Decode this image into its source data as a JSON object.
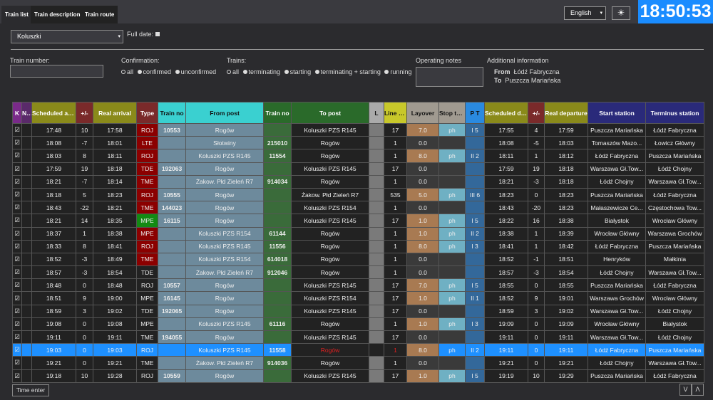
{
  "tabs": [
    "Train list",
    "Train description",
    "Train route"
  ],
  "language": "English",
  "clock": "18:50:53",
  "station": "Koluszki",
  "full_date_label": "Full date:",
  "train_number_label": "Train number:",
  "confirmation": {
    "label": "Confirmation:",
    "options": [
      "all",
      "confirmed",
      "unconfirmed"
    ]
  },
  "trains": {
    "label": "Trains:",
    "options": [
      "all",
      "terminating",
      "starting",
      "terminating + starting",
      "running"
    ]
  },
  "operating_notes_label": "Operating notes",
  "additional": {
    "label": "Additional information",
    "from_label": "From",
    "from": "Łódź Fabryczna",
    "to_label": "To",
    "to": "Puszcza Mariańska"
  },
  "headers": [
    "K",
    "N K",
    "Scheduled arrival",
    "+/-",
    "Real arrival",
    "Type",
    "Train no",
    "From post",
    "Train no",
    "To post",
    "L",
    "Line no.",
    "Layover",
    "Stop type",
    "P T",
    "Scheduled departure",
    "+/-",
    "Real departure",
    "Start station",
    "Terminus station"
  ],
  "rows": [
    [
      "☑",
      "",
      "17:48",
      "10",
      "17:58",
      "ROJ",
      "10553",
      "Rogów",
      "",
      "Koluszki PZS R145",
      "",
      "17",
      "7.0",
      "ph",
      "I 5",
      "17:55",
      "4",
      "17:59",
      "Puszcza Mariańska",
      "Łódź Fabryczna",
      "red"
    ],
    [
      "☑",
      "",
      "18:08",
      "-7",
      "18:01",
      "LTE",
      "",
      "Słotwiny",
      "215010",
      "Rogów",
      "",
      "1",
      "0.0",
      "",
      "",
      "18:08",
      "-5",
      "18:03",
      "Tomaszów Mazo...",
      "Łowicz Główny",
      "red"
    ],
    [
      "☑",
      "",
      "18:03",
      "8",
      "18:11",
      "ROJ",
      "",
      "Koluszki PZS R145",
      "11554",
      "Rogów",
      "",
      "1",
      "8.0",
      "ph",
      "II 2",
      "18:11",
      "1",
      "18:12",
      "Łódź Fabryczna",
      "Puszcza Mariańska",
      "red"
    ],
    [
      "☑",
      "",
      "17:59",
      "19",
      "18:18",
      "TDE",
      "192063",
      "Rogów",
      "",
      "Koluszki PZS R145",
      "",
      "17",
      "0.0",
      "",
      "",
      "17:59",
      "19",
      "18:18",
      "Warszawa Gł.Tow...",
      "Łódź Chojny",
      "red"
    ],
    [
      "☑",
      "",
      "18:21",
      "-7",
      "18:14",
      "TME",
      "",
      "Żakow. Płd Zieleń R7",
      "914034",
      "Rogów",
      "",
      "1",
      "0.0",
      "",
      "",
      "18:21",
      "-3",
      "18:18",
      "Łódź Chojny",
      "Warszawa Gł.Tow...",
      "red"
    ],
    [
      "☑",
      "",
      "18:18",
      "5",
      "18:23",
      "ROJ",
      "10555",
      "Rogów",
      "",
      "Żakow. Płd Zieleń R7",
      "",
      "535",
      "5.0",
      "ph",
      "III 6",
      "18:23",
      "0",
      "18:23",
      "Puszcza Mariańska",
      "Łódź Fabryczna",
      "red"
    ],
    [
      "☑",
      "",
      "18:43",
      "-22",
      "18:21",
      "TME",
      "144023",
      "Rogów",
      "",
      "Koluszki PZS R154",
      "",
      "1",
      "0.0",
      "",
      "",
      "18:43",
      "-20",
      "18:23",
      "Małaszewicze Ce...",
      "Częstochowa Tow...",
      "red"
    ],
    [
      "☑",
      "",
      "18:21",
      "14",
      "18:35",
      "MPE",
      "16115",
      "Rogów",
      "",
      "Koluszki PZS R145",
      "",
      "17",
      "1.0",
      "ph",
      "I 5",
      "18:22",
      "16",
      "18:38",
      "Białystok",
      "Wrocław Główny",
      "green"
    ],
    [
      "☑",
      "",
      "18:37",
      "1",
      "18:38",
      "MPE",
      "",
      "Koluszki PZS R154",
      "61144",
      "Rogów",
      "",
      "1",
      "1.0",
      "ph",
      "II 2",
      "18:38",
      "1",
      "18:39",
      "Wrocław Główny",
      "Warszawa Grochów",
      "red"
    ],
    [
      "☑",
      "",
      "18:33",
      "8",
      "18:41",
      "ROJ",
      "",
      "Koluszki PZS R145",
      "11556",
      "Rogów",
      "",
      "1",
      "8.0",
      "ph",
      "I 3",
      "18:41",
      "1",
      "18:42",
      "Łódź Fabryczna",
      "Puszcza Mariańska",
      "red"
    ],
    [
      "☑",
      "",
      "18:52",
      "-3",
      "18:49",
      "TME",
      "",
      "Koluszki PZS R154",
      "614018",
      "Rogów",
      "",
      "1",
      "0.0",
      "",
      "",
      "18:52",
      "-1",
      "18:51",
      "Henryków",
      "Małkinia",
      "red"
    ],
    [
      "☑",
      "",
      "18:57",
      "-3",
      "18:54",
      "TDE",
      "",
      "Żakow. Płd Zieleń R7",
      "912046",
      "Rogów",
      "",
      "1",
      "0.0",
      "",
      "",
      "18:57",
      "-3",
      "18:54",
      "Łódź Chojny",
      "Warszawa Gł.Tow...",
      ""
    ],
    [
      "☑",
      "",
      "18:48",
      "0",
      "18:48",
      "ROJ",
      "10557",
      "Rogów",
      "",
      "Koluszki PZS R145",
      "",
      "17",
      "7.0",
      "ph",
      "I 5",
      "18:55",
      "0",
      "18:55",
      "Puszcza Mariańska",
      "Łódź Fabryczna",
      ""
    ],
    [
      "☑",
      "",
      "18:51",
      "9",
      "19:00",
      "MPE",
      "16145",
      "Rogów",
      "",
      "Koluszki PZS R154",
      "",
      "17",
      "1.0",
      "ph",
      "II 1",
      "18:52",
      "9",
      "19:01",
      "Warszawa Grochów",
      "Wrocław Główny",
      ""
    ],
    [
      "☑",
      "",
      "18:59",
      "3",
      "19:02",
      "TDE",
      "192065",
      "Rogów",
      "",
      "Koluszki PZS R145",
      "",
      "17",
      "0.0",
      "",
      "",
      "18:59",
      "3",
      "19:02",
      "Warszawa Gł.Tow...",
      "Łódź Chojny",
      ""
    ],
    [
      "☑",
      "",
      "19:08",
      "0",
      "19:08",
      "MPE",
      "",
      "Koluszki PZS R145",
      "61116",
      "Rogów",
      "",
      "1",
      "1.0",
      "ph",
      "I 3",
      "19:09",
      "0",
      "19:09",
      "Wrocław Główny",
      "Białystok",
      ""
    ],
    [
      "☑",
      "",
      "19:11",
      "0",
      "19:11",
      "TME",
      "194055",
      "Rogów",
      "",
      "Koluszki PZS R145",
      "",
      "17",
      "0.0",
      "",
      "",
      "19:11",
      "0",
      "19:11",
      "Warszawa Gł.Tow...",
      "Łódź Chojny",
      ""
    ],
    [
      "☑",
      "",
      "19:03",
      "0",
      "19:03",
      "ROJ",
      "",
      "Koluszki PZS R145",
      "11558",
      "Rogów",
      "",
      "1",
      "8.0",
      "ph",
      "II 2",
      "19:11",
      "0",
      "19:11",
      "Łódź Fabryczna",
      "Puszcza Mariańska",
      "selected"
    ],
    [
      "☑",
      "",
      "19:21",
      "0",
      "19:21",
      "TME",
      "",
      "Żakow. Płd Zieleń R7",
      "914036",
      "Rogów",
      "",
      "1",
      "0.0",
      "",
      "",
      "19:21",
      "0",
      "19:21",
      "Łódź Chojny",
      "Warszawa Gł.Tow...",
      ""
    ],
    [
      "☑",
      "",
      "19:18",
      "10",
      "19:28",
      "ROJ",
      "10559",
      "Rogów",
      "",
      "Koluszki PZS R145",
      "",
      "17",
      "1.0",
      "ph",
      "I 5",
      "19:19",
      "10",
      "19:29",
      "Puszcza Mariańska",
      "Łódź Fabryczna",
      ""
    ]
  ],
  "time_enter_label": "Time enter",
  "nav_down": "V",
  "nav_up": "Λ"
}
